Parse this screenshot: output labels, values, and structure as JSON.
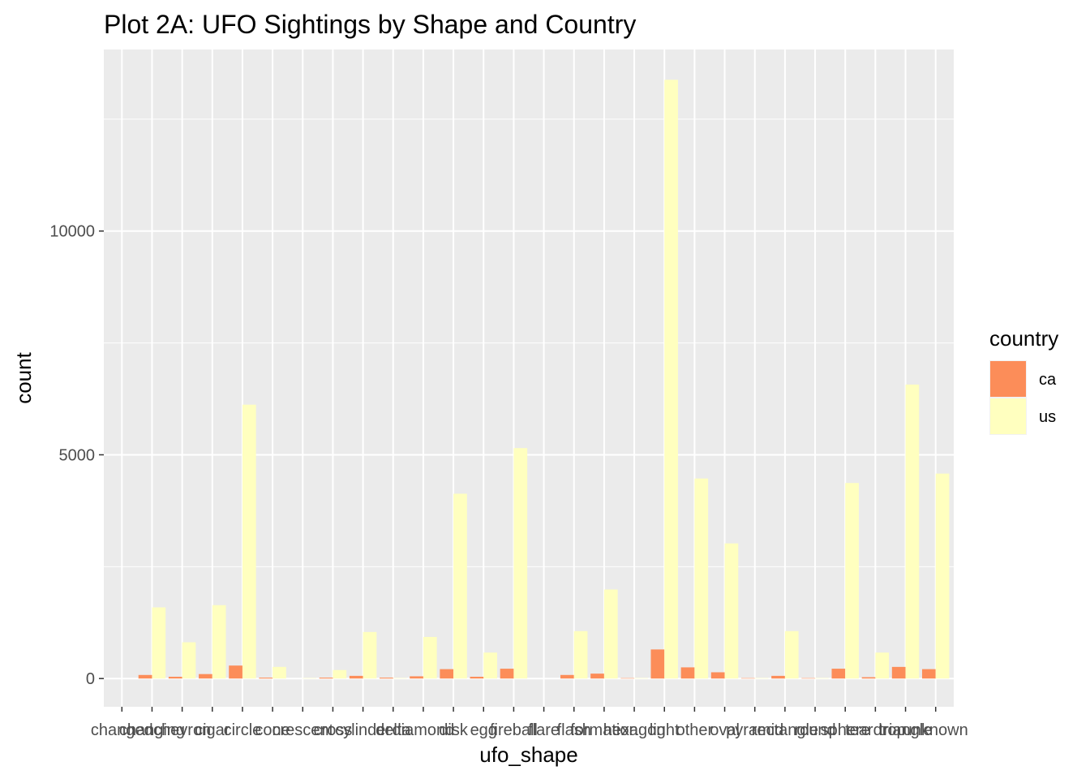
{
  "chart_data": {
    "type": "bar",
    "title": "Plot 2A: UFO Sightings by Shape and Country",
    "xlabel": "ufo_shape",
    "ylabel": "count",
    "categories": [
      "changed",
      "changing",
      "chevron",
      "cigar",
      "circle",
      "cone",
      "crescent",
      "cross",
      "cylinder",
      "delta",
      "diamond",
      "disk",
      "egg",
      "fireball",
      "flare",
      "flash",
      "formation",
      "hexagon",
      "light",
      "other",
      "oval",
      "pyramid",
      "rectangle",
      "round",
      "sphere",
      "teardrop",
      "triangle",
      "unknown"
    ],
    "series": [
      {
        "name": "ca",
        "color": "#fc8d59",
        "values": [
          0,
          80,
          40,
          100,
          290,
          20,
          0,
          20,
          60,
          20,
          50,
          210,
          40,
          220,
          0,
          80,
          110,
          10,
          650,
          250,
          140,
          10,
          60,
          10,
          220,
          30,
          260,
          210
        ]
      },
      {
        "name": "us",
        "color": "#ffffbf",
        "values": [
          0,
          1590,
          810,
          1640,
          6120,
          260,
          10,
          190,
          1040,
          10,
          930,
          4130,
          580,
          5150,
          0,
          1060,
          1990,
          10,
          13380,
          4470,
          3020,
          10,
          1060,
          10,
          4370,
          580,
          6570,
          4580
        ]
      }
    ],
    "ylim": [
      -631,
      14057
    ],
    "yticks": [
      0,
      5000,
      10000
    ],
    "ytick_labels": [
      "0",
      "5000",
      "10000"
    ],
    "legend": {
      "title": "country",
      "position": "right"
    },
    "grid": true
  }
}
